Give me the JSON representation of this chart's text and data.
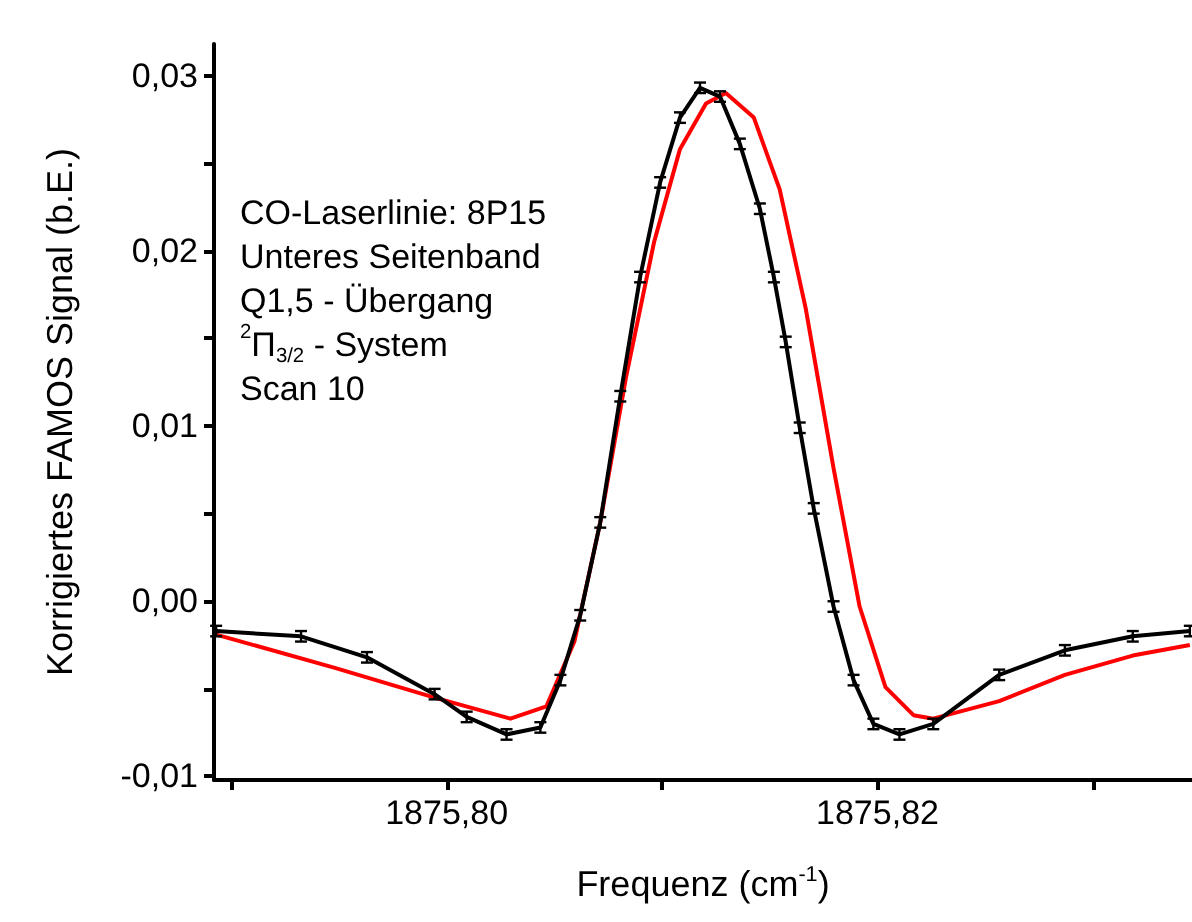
{
  "chart_data": {
    "type": "line",
    "xlabel": "Frequenz (cm$^{-1}$)",
    "ylabel": "Korrigiertes FAMOS Signal (b.E.)",
    "annotations": [
      "CO-Laserlinie: 8P15",
      "Unteres Seitenband",
      "Q1,5 - Übergang",
      "$^{2}$Π$_{3/2}$ - System",
      "Scan 10"
    ],
    "xlim": [
      1875.7892,
      1875.8346
    ],
    "ylim": [
      -0.0102,
      0.0318
    ],
    "xticks": [
      {
        "value": 1875.79,
        "label": null
      },
      {
        "value": 1875.8,
        "label": "1875,80"
      },
      {
        "value": 1875.81,
        "label": null
      },
      {
        "value": 1875.82,
        "label": "1875,82"
      },
      {
        "value": 1875.83,
        "label": null
      }
    ],
    "yticks": [
      {
        "value": -0.01,
        "label": "-0,01"
      },
      {
        "value": -0.005,
        "label": null
      },
      {
        "value": 0,
        "label": "0,00"
      },
      {
        "value": 0.005,
        "label": null
      },
      {
        "value": 0.01,
        "label": "0,01"
      },
      {
        "value": 0.015,
        "label": null
      },
      {
        "value": 0.02,
        "label": "0,02"
      },
      {
        "value": 0.025,
        "label": null
      },
      {
        "value": 0.03,
        "label": "0,03"
      }
    ],
    "grid": false,
    "marker": "none",
    "line_style": "solid",
    "series": [
      {
        "color": "#000000",
        "x": [
          1875.7893,
          1875.79324,
          1875.7963,
          1875.79944,
          1875.80093,
          1875.80278,
          1875.80435,
          1875.80528,
          1875.8062,
          1875.80713,
          1875.80806,
          1875.80898,
          1875.80991,
          1875.81083,
          1875.81176,
          1875.81269,
          1875.81361,
          1875.81454,
          1875.81519,
          1875.81574,
          1875.81639,
          1875.81704,
          1875.81796,
          1875.81889,
          1875.81981,
          1875.82102,
          1875.82259,
          1875.82565,
          1875.8287,
          1875.83185,
          1875.8345
        ],
        "values": [
          -0.0017,
          -0.002,
          -0.0032,
          -0.0053,
          -0.0066,
          -0.0076,
          -0.0072,
          -0.0045,
          -0.0008,
          0.0045,
          0.0117,
          0.0185,
          0.0239,
          0.0276,
          0.0293,
          0.0288,
          0.0261,
          0.0224,
          0.0185,
          0.0148,
          0.0099,
          0.0053,
          -0.0003,
          -0.0045,
          -0.007,
          -0.0076,
          -0.007,
          -0.0042,
          -0.0028,
          -0.002,
          -0.0017
        ],
        "errors": [
          0.0003,
          0.0003,
          0.0003,
          0.0003,
          0.0003,
          0.0003,
          0.0003,
          0.0003,
          0.0003,
          0.0003,
          0.0003,
          0.0003,
          0.0003,
          0.0003,
          0.0003,
          0.0003,
          0.0003,
          0.0003,
          0.0003,
          0.0003,
          0.0003,
          0.0003,
          0.0003,
          0.0003,
          0.0003,
          0.0003,
          0.0003,
          0.0003,
          0.0003,
          0.0003,
          0.0003
        ]
      },
      {
        "color": "#ff0000",
        "x": [
          1875.7893,
          1875.79481,
          1875.79944,
          1875.80296,
          1875.80463,
          1875.80593,
          1875.80713,
          1875.80833,
          1875.80963,
          1875.81083,
          1875.81204,
          1875.81296,
          1875.81426,
          1875.81546,
          1875.81667,
          1875.81796,
          1875.81917,
          1875.82037,
          1875.82167,
          1875.82259,
          1875.82565,
          1875.8287,
          1875.83185,
          1875.8345
        ],
        "values": [
          -0.0019,
          -0.0038,
          -0.0055,
          -0.0067,
          -0.006,
          -0.0023,
          0.0045,
          0.0128,
          0.0205,
          0.0258,
          0.0284,
          0.029,
          0.0276,
          0.0235,
          0.0167,
          0.0076,
          -0.0003,
          -0.0049,
          -0.0065,
          -0.0067,
          -0.0057,
          -0.0042,
          -0.0031,
          -0.0025
        ]
      }
    ]
  }
}
